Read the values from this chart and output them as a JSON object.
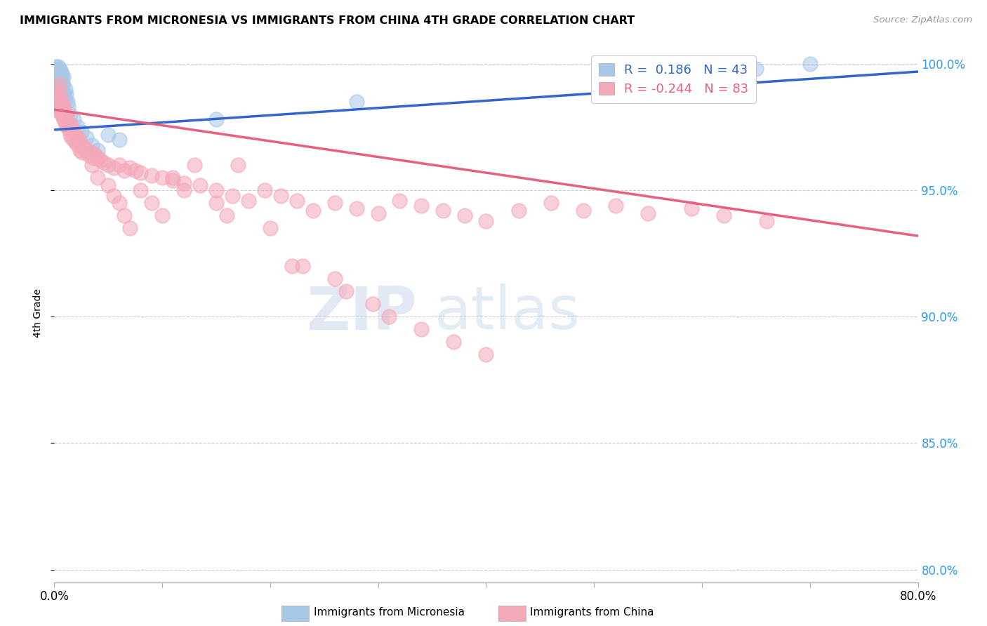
{
  "title": "IMMIGRANTS FROM MICRONESIA VS IMMIGRANTS FROM CHINA 4TH GRADE CORRELATION CHART",
  "source": "Source: ZipAtlas.com",
  "ylabel": "4th Grade",
  "xlim": [
    0.0,
    0.8
  ],
  "ylim": [
    0.795,
    1.008
  ],
  "xticks": [
    0.0,
    0.1,
    0.2,
    0.3,
    0.4,
    0.5,
    0.6,
    0.7,
    0.8
  ],
  "xticklabels": [
    "0.0%",
    "",
    "",
    "",
    "",
    "",
    "",
    "",
    "80.0%"
  ],
  "yticks": [
    0.8,
    0.85,
    0.9,
    0.95,
    1.0
  ],
  "yticklabels": [
    "80.0%",
    "85.0%",
    "90.0%",
    "95.0%",
    "100.0%"
  ],
  "micronesia_R": 0.186,
  "micronesia_N": 43,
  "china_R": -0.244,
  "china_N": 83,
  "micronesia_color": "#a8c8e8",
  "china_color": "#f4a8b8",
  "micronesia_line_color": "#3366cc",
  "china_line_color": "#e86080",
  "legend_label_micronesia": "Immigrants from Micronesia",
  "legend_label_china": "Immigrants from China",
  "watermark_zip": "ZIP",
  "watermark_atlas": "atlas",
  "micronesia_x": [
    0.001,
    0.002,
    0.002,
    0.003,
    0.003,
    0.004,
    0.004,
    0.004,
    0.005,
    0.005,
    0.005,
    0.005,
    0.006,
    0.006,
    0.006,
    0.006,
    0.006,
    0.007,
    0.007,
    0.007,
    0.007,
    0.008,
    0.008,
    0.008,
    0.009,
    0.01,
    0.01,
    0.011,
    0.012,
    0.013,
    0.015,
    0.018,
    0.022,
    0.025,
    0.03,
    0.035,
    0.04,
    0.05,
    0.06,
    0.15,
    0.28,
    0.65,
    0.7
  ],
  "micronesia_y": [
    0.998,
    0.997,
    0.999,
    0.996,
    0.994,
    0.997,
    0.993,
    0.999,
    0.998,
    0.995,
    0.991,
    0.988,
    0.997,
    0.995,
    0.992,
    0.988,
    0.985,
    0.996,
    0.993,
    0.99,
    0.987,
    0.995,
    0.992,
    0.989,
    0.988,
    0.99,
    0.986,
    0.988,
    0.985,
    0.983,
    0.98,
    0.978,
    0.975,
    0.973,
    0.971,
    0.968,
    0.966,
    0.972,
    0.97,
    0.978,
    0.985,
    0.998,
    1.0
  ],
  "china_x": [
    0.001,
    0.002,
    0.002,
    0.003,
    0.003,
    0.004,
    0.004,
    0.005,
    0.005,
    0.006,
    0.006,
    0.007,
    0.007,
    0.008,
    0.008,
    0.009,
    0.009,
    0.01,
    0.01,
    0.011,
    0.011,
    0.012,
    0.012,
    0.013,
    0.014,
    0.015,
    0.015,
    0.016,
    0.016,
    0.017,
    0.018,
    0.019,
    0.02,
    0.021,
    0.022,
    0.023,
    0.024,
    0.025,
    0.026,
    0.028,
    0.03,
    0.032,
    0.034,
    0.036,
    0.038,
    0.04,
    0.043,
    0.046,
    0.05,
    0.055,
    0.06,
    0.065,
    0.07,
    0.075,
    0.08,
    0.09,
    0.1,
    0.11,
    0.12,
    0.135,
    0.15,
    0.165,
    0.18,
    0.195,
    0.21,
    0.225,
    0.24,
    0.26,
    0.28,
    0.3,
    0.32,
    0.34,
    0.36,
    0.38,
    0.4,
    0.43,
    0.46,
    0.49,
    0.52,
    0.55,
    0.59,
    0.62,
    0.66
  ],
  "china_y": [
    0.988,
    0.985,
    0.982,
    0.99,
    0.987,
    0.986,
    0.983,
    0.992,
    0.988,
    0.985,
    0.981,
    0.984,
    0.98,
    0.983,
    0.979,
    0.982,
    0.978,
    0.98,
    0.977,
    0.979,
    0.976,
    0.978,
    0.975,
    0.977,
    0.974,
    0.976,
    0.972,
    0.975,
    0.971,
    0.974,
    0.97,
    0.972,
    0.969,
    0.971,
    0.968,
    0.97,
    0.966,
    0.968,
    0.965,
    0.967,
    0.966,
    0.964,
    0.965,
    0.963,
    0.964,
    0.963,
    0.962,
    0.961,
    0.96,
    0.959,
    0.96,
    0.958,
    0.959,
    0.958,
    0.957,
    0.956,
    0.955,
    0.954,
    0.953,
    0.952,
    0.95,
    0.948,
    0.946,
    0.95,
    0.948,
    0.946,
    0.942,
    0.945,
    0.943,
    0.941,
    0.946,
    0.944,
    0.942,
    0.94,
    0.938,
    0.942,
    0.945,
    0.942,
    0.944,
    0.941,
    0.943,
    0.94,
    0.938
  ],
  "china_y_extra": [
    0.965,
    0.96,
    0.955,
    0.952,
    0.948,
    0.945,
    0.94,
    0.935,
    0.95,
    0.945,
    0.94,
    0.955,
    0.95,
    0.96,
    0.945,
    0.94,
    0.96,
    0.935,
    0.92,
    0.92,
    0.915,
    0.91,
    0.905,
    0.9,
    0.895,
    0.89,
    0.885
  ],
  "china_x_extra": [
    0.03,
    0.035,
    0.04,
    0.05,
    0.055,
    0.06,
    0.065,
    0.07,
    0.08,
    0.09,
    0.1,
    0.11,
    0.12,
    0.13,
    0.15,
    0.16,
    0.17,
    0.2,
    0.22,
    0.23,
    0.26,
    0.27,
    0.295,
    0.31,
    0.34,
    0.37,
    0.4
  ]
}
